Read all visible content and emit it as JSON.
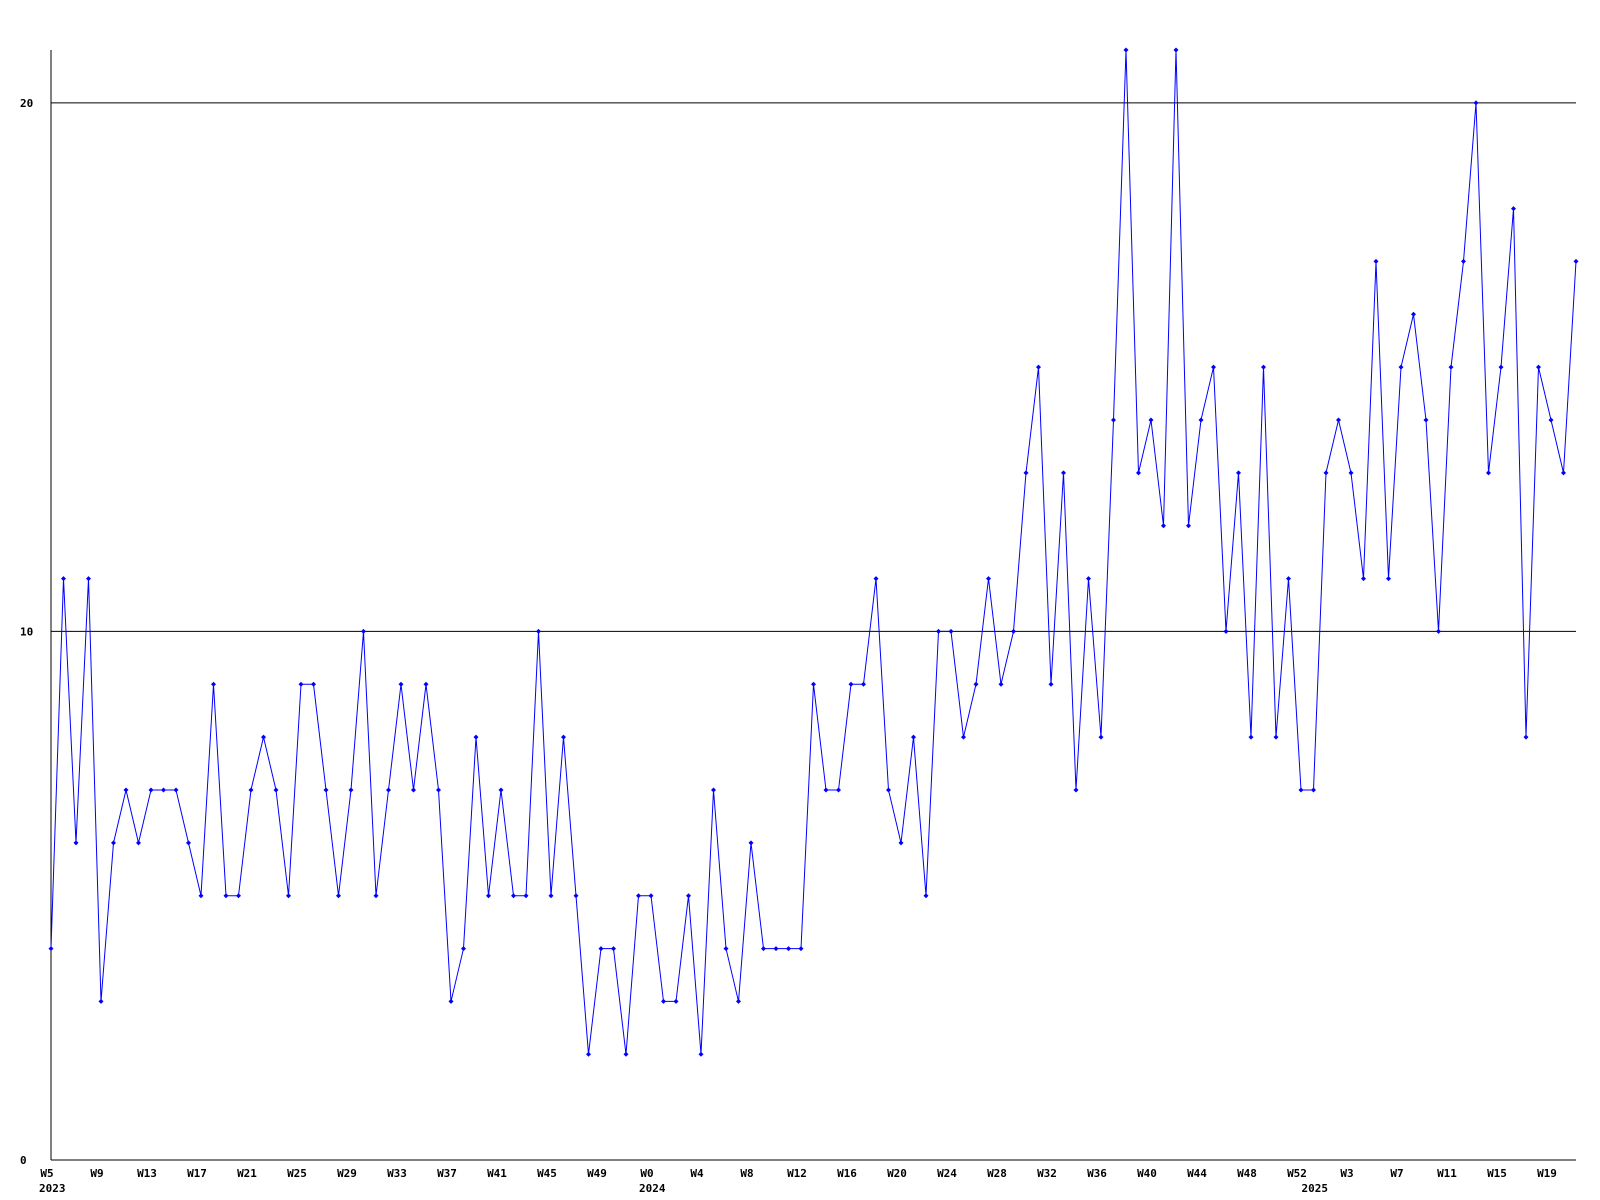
{
  "chart_data": {
    "type": "line",
    "categories": [
      "W5",
      null,
      null,
      null,
      "W9",
      null,
      null,
      null,
      "W13",
      null,
      null,
      null,
      "W17",
      null,
      null,
      null,
      "W21",
      null,
      null,
      null,
      "W25",
      null,
      null,
      null,
      "W29",
      null,
      null,
      null,
      "W33",
      null,
      null,
      null,
      "W37",
      null,
      null,
      null,
      "W41",
      null,
      null,
      null,
      "W45",
      null,
      null,
      null,
      "W49",
      null,
      null,
      null,
      "W0",
      null,
      null,
      null,
      "W4",
      null,
      null,
      null,
      "W8",
      null,
      null,
      null,
      "W12",
      null,
      null,
      null,
      "W16",
      null,
      null,
      null,
      "W20",
      null,
      null,
      null,
      "W24",
      null,
      null,
      null,
      "W28",
      null,
      null,
      null,
      "W32",
      null,
      null,
      null,
      "W36",
      null,
      null,
      null,
      "W40",
      null,
      null,
      null,
      "W44",
      null,
      null,
      null,
      "W48",
      null,
      null,
      null,
      "W52",
      null,
      null,
      null,
      "W3",
      null,
      null,
      null,
      "W7",
      null,
      null,
      null,
      "W11",
      null,
      null,
      null,
      "W15",
      null,
      null,
      null,
      "W19",
      null,
      null
    ],
    "category_years": [
      "2023",
      null,
      null,
      null,
      null,
      null,
      null,
      null,
      null,
      null,
      null,
      null,
      null,
      null,
      null,
      null,
      null,
      null,
      null,
      null,
      null,
      null,
      null,
      null,
      null,
      null,
      null,
      null,
      null,
      null,
      null,
      null,
      null,
      null,
      null,
      null,
      null,
      null,
      null,
      null,
      null,
      null,
      null,
      null,
      null,
      null,
      null,
      null,
      "2024",
      null,
      null,
      null,
      null,
      null,
      null,
      null,
      null,
      null,
      null,
      null,
      null,
      null,
      null,
      null,
      null,
      null,
      null,
      null,
      null,
      null,
      null,
      null,
      null,
      null,
      null,
      null,
      null,
      null,
      null,
      null,
      null,
      null,
      null,
      null,
      null,
      null,
      null,
      null,
      null,
      null,
      null,
      null,
      null,
      null,
      null,
      null,
      null,
      null,
      null,
      null,
      null,
      "2025",
      null,
      null,
      null,
      null,
      null,
      null,
      null,
      null,
      null,
      null,
      null,
      null,
      null,
      null,
      null,
      null,
      null,
      null,
      null,
      null
    ],
    "series": [
      {
        "color": "#0000ff",
        "values": [
          4,
          11,
          6,
          11,
          3,
          6,
          7,
          6,
          7,
          7,
          7,
          6,
          5,
          9,
          5,
          5,
          7,
          8,
          7,
          5,
          9,
          9,
          7,
          5,
          7,
          10,
          5,
          7,
          9,
          7,
          9,
          7,
          3,
          4,
          8,
          5,
          7,
          5,
          5,
          10,
          5,
          8,
          5,
          2,
          4,
          4,
          2,
          5,
          5,
          3,
          3,
          5,
          2,
          7,
          4,
          3,
          6,
          4,
          4,
          4,
          4,
          9,
          7,
          7,
          9,
          9,
          11,
          7,
          6,
          8,
          5,
          10,
          10,
          8,
          9,
          11,
          9,
          10,
          13,
          15,
          9,
          13,
          7,
          11,
          8,
          14,
          21,
          13,
          14,
          12,
          21,
          12,
          14,
          15,
          10,
          13,
          8,
          15,
          8,
          11,
          7,
          7,
          13,
          14,
          13,
          11,
          17,
          11,
          15,
          16,
          14,
          10,
          15,
          17,
          20,
          13,
          15,
          18,
          8,
          15,
          14,
          13,
          17
        ]
      }
    ],
    "ylim": [
      0,
      21
    ],
    "yticks": [
      0,
      10,
      20
    ],
    "grid": true
  }
}
